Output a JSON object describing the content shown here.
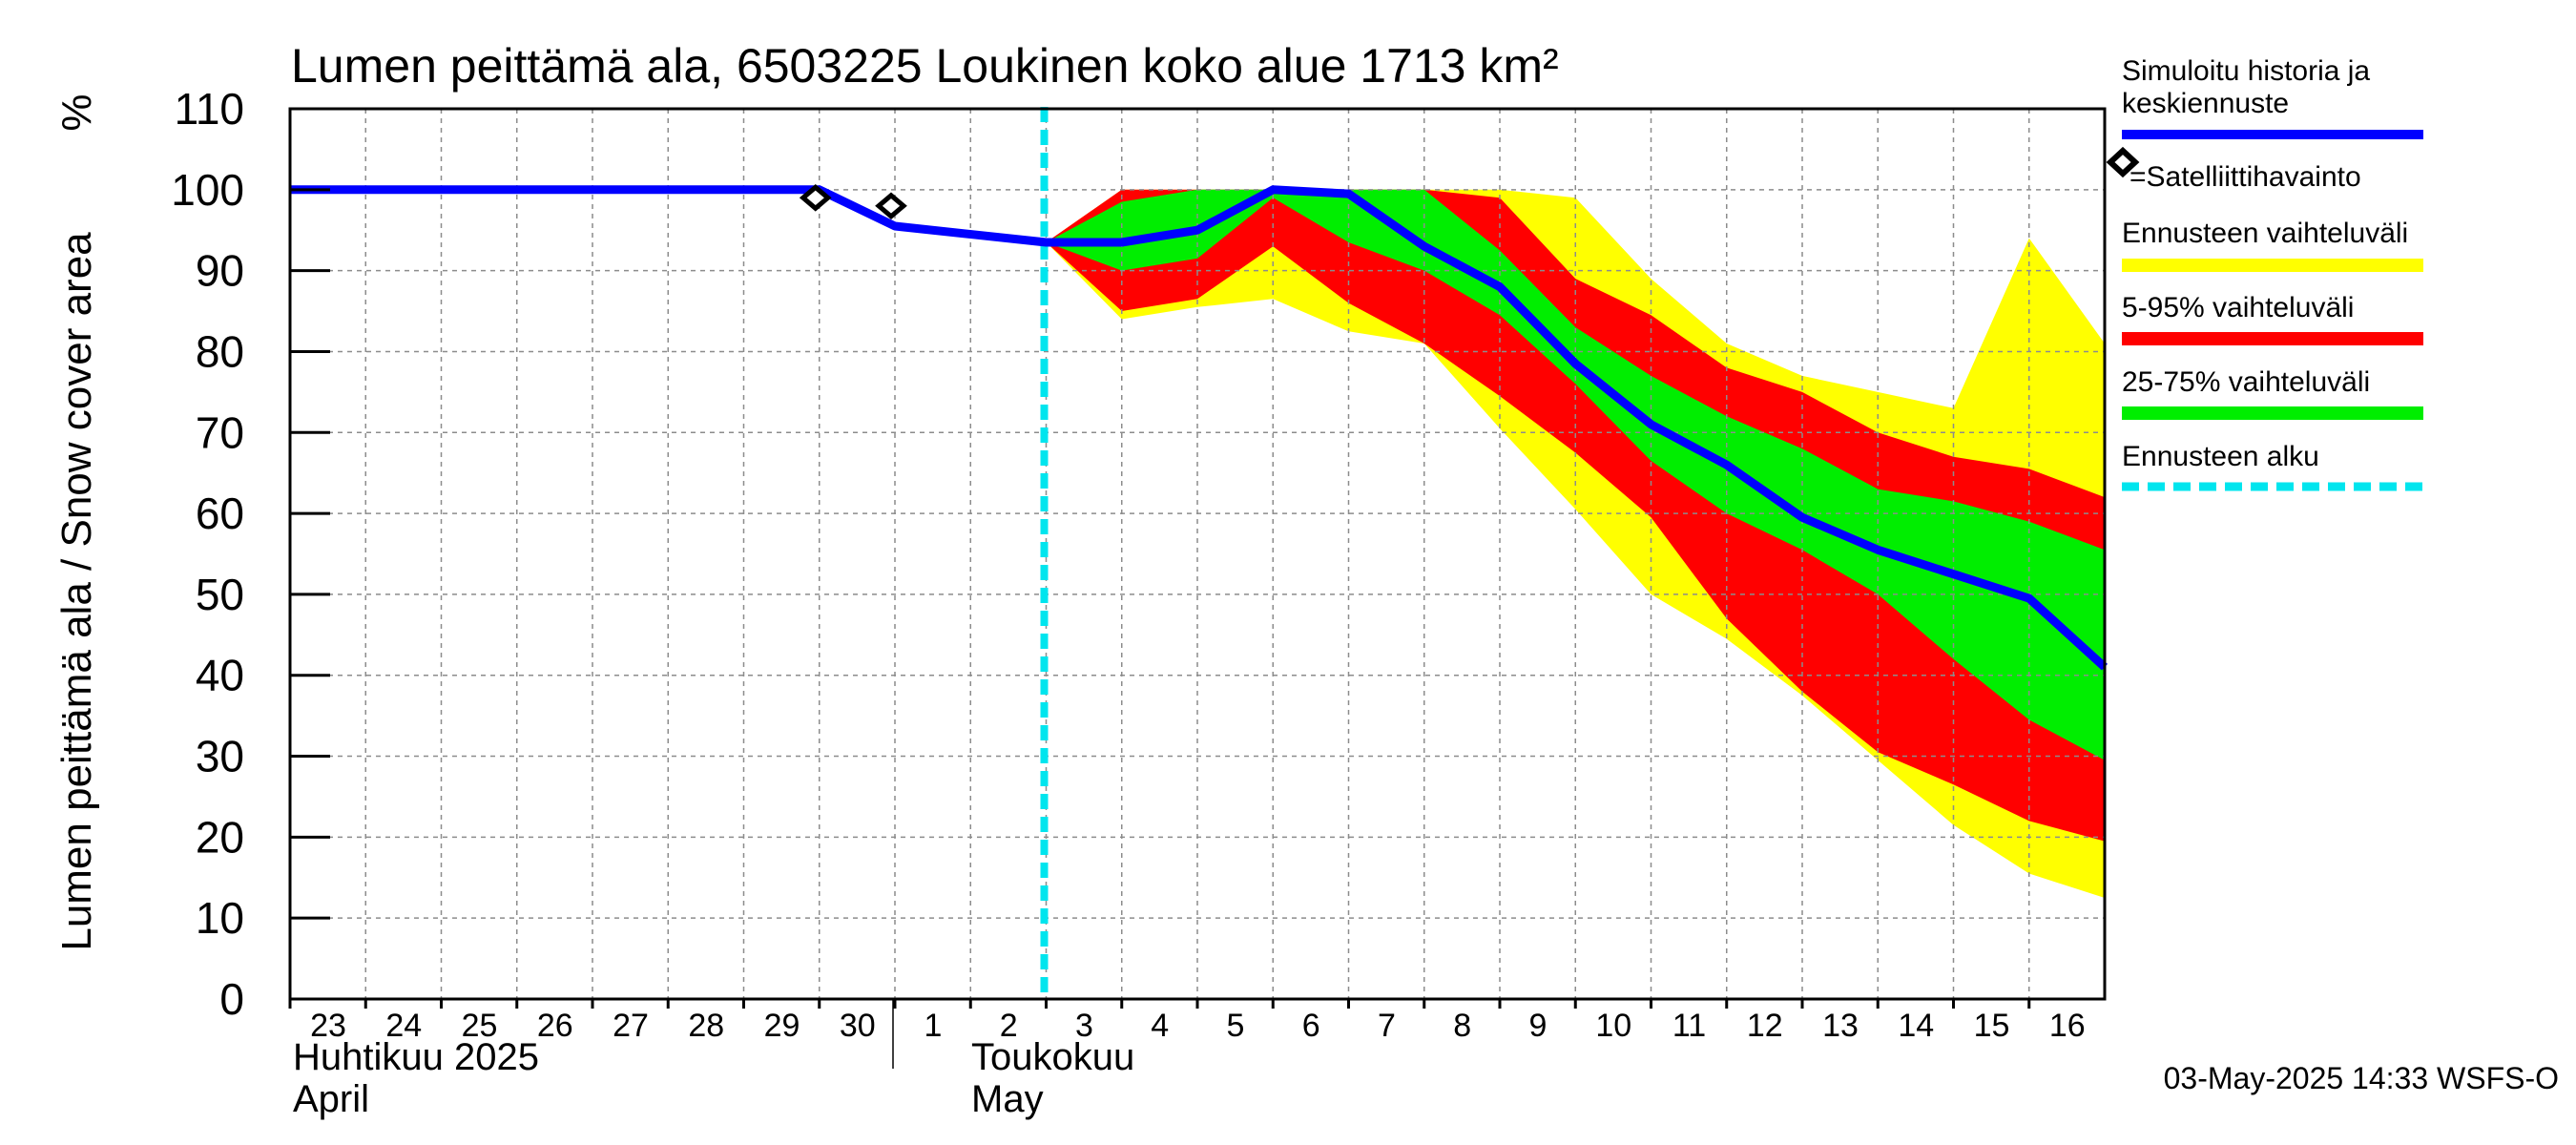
{
  "chart_data": {
    "type": "area",
    "title": "Lumen peittämä ala, 6503225 Loukinen koko alue 1713 km²",
    "ylabel": "Lumen peittämä ala / Snow cover area",
    "yunit": "%",
    "ylim": [
      0,
      110
    ],
    "yticks": [
      0,
      10,
      20,
      30,
      40,
      50,
      60,
      70,
      80,
      90,
      100,
      110
    ],
    "xlim": [
      23,
      47
    ],
    "day_ticks": [
      {
        "label": "23",
        "x": 23
      },
      {
        "label": "24",
        "x": 24
      },
      {
        "label": "25",
        "x": 25
      },
      {
        "label": "26",
        "x": 26
      },
      {
        "label": "27",
        "x": 27
      },
      {
        "label": "28",
        "x": 28
      },
      {
        "label": "29",
        "x": 29
      },
      {
        "label": "30",
        "x": 30
      },
      {
        "label": "1",
        "x": 31
      },
      {
        "label": "2",
        "x": 32
      },
      {
        "label": "3",
        "x": 33
      },
      {
        "label": "4",
        "x": 34
      },
      {
        "label": "5",
        "x": 35
      },
      {
        "label": "6",
        "x": 36
      },
      {
        "label": "7",
        "x": 37
      },
      {
        "label": "8",
        "x": 38
      },
      {
        "label": "9",
        "x": 39
      },
      {
        "label": "10",
        "x": 40
      },
      {
        "label": "11",
        "x": 41
      },
      {
        "label": "12",
        "x": 42
      },
      {
        "label": "13",
        "x": 43
      },
      {
        "label": "14",
        "x": 44
      },
      {
        "label": "15",
        "x": 45
      },
      {
        "label": "16",
        "x": 46
      }
    ],
    "month_labels": {
      "april_fi": "Huhtikuu  2025",
      "april_en": "April",
      "may_fi": "Toukokuu",
      "may_en": "May"
    },
    "forecast_start_x": 33,
    "series": [
      {
        "name": "Ennusteen vaihteluväli",
        "color": "#ffff00",
        "x": [
          33,
          34,
          35,
          36,
          37,
          38,
          39,
          40,
          41,
          42,
          43,
          44,
          45,
          46,
          47
        ],
        "upper": [
          93.5,
          100,
          100,
          100,
          100,
          100,
          100,
          99,
          89,
          81,
          77,
          75,
          73,
          94,
          81
        ],
        "lower": [
          93.5,
          84,
          85.5,
          86.5,
          82.5,
          81,
          70.5,
          60.5,
          50,
          44.5,
          37.5,
          29.5,
          21.5,
          15.5,
          12.5
        ]
      },
      {
        "name": "5-95% vaihteluväli",
        "color": "#ff0000",
        "x": [
          33,
          34,
          35,
          36,
          37,
          38,
          39,
          40,
          41,
          42,
          43,
          44,
          45,
          46,
          47
        ],
        "upper": [
          93.5,
          100,
          100,
          100,
          100,
          100,
          99,
          89,
          84.5,
          78,
          75,
          70,
          67,
          65.5,
          62
        ],
        "lower": [
          93.5,
          85,
          86.5,
          93,
          86,
          81,
          74.5,
          67.5,
          59.5,
          47,
          38,
          30.5,
          26.5,
          22,
          19.5
        ]
      },
      {
        "name": "25-75% vaihteluväli",
        "color": "#00ee00",
        "x": [
          33,
          34,
          35,
          36,
          37,
          38,
          39,
          40,
          41,
          42,
          43,
          44,
          45,
          46,
          47
        ],
        "upper": [
          93.5,
          98.5,
          100,
          100,
          100,
          100,
          92.5,
          83,
          77,
          72,
          68,
          63,
          61.5,
          59,
          55.5
        ],
        "lower": [
          93.5,
          90,
          91.5,
          99,
          93.5,
          90,
          84.5,
          76,
          66.5,
          60,
          55.5,
          50,
          42,
          34.5,
          29.5
        ]
      },
      {
        "name": "Simuloitu historia ja keskiennuste",
        "color": "#0000ff",
        "x": [
          23,
          30,
          31,
          33,
          34,
          35,
          36,
          37,
          38,
          39,
          40,
          41,
          42,
          43,
          44,
          45,
          46,
          47
        ],
        "values": [
          100,
          100,
          95.5,
          93.5,
          93.5,
          95,
          100,
          99.5,
          93,
          88,
          78.5,
          71,
          66,
          59.5,
          55.5,
          52.5,
          49.5,
          41
        ]
      }
    ],
    "satellite_observations": {
      "name": "Satelliittihavainto",
      "points": [
        {
          "x": 30,
          "y": 99
        },
        {
          "x": 31,
          "y": 98
        }
      ]
    },
    "legend": {
      "sim_line1": "Simuloitu historia ja",
      "sim_line2": "keskiennuste",
      "satellite": "=Satelliittihavainto",
      "yellow": "Ennusteen vaihteluväli",
      "red": "5-95% vaihteluväli",
      "green": "25-75% vaihteluväli",
      "forecast_start": "Ennusteen alku",
      "forecast_start_color": "#00e5ee"
    },
    "footer_timestamp": "03-May-2025 14:33 WSFS-O"
  }
}
